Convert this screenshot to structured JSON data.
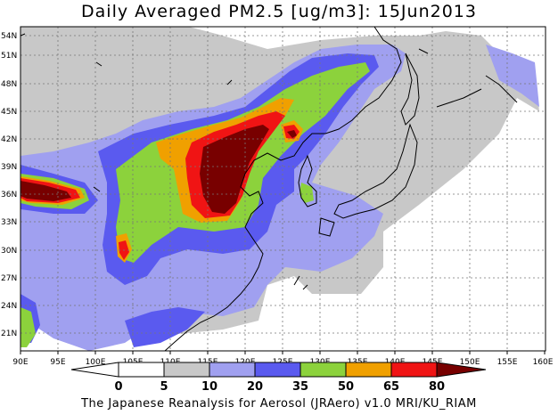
{
  "title": "Daily Averaged PM2.5 [ug/m3]: 15Jun2013",
  "credit": "The Japanese Reanalysis for Aerosol (JRAero) v1.0 MRI/KU_RIAM",
  "map": {
    "lon_range": [
      90,
      160
    ],
    "lat_range": [
      20,
      55
    ],
    "lon_ticks": [
      "90E",
      "95E",
      "100E",
      "105E",
      "110E",
      "115E",
      "120E",
      "125E",
      "130E",
      "135E",
      "140E",
      "145E",
      "150E",
      "155E",
      "160E"
    ],
    "lat_ticks": [
      "21N",
      "24N",
      "27N",
      "30N",
      "33N",
      "36N",
      "39N",
      "42N",
      "45N",
      "48N",
      "51N",
      "54N"
    ],
    "gridlines": true
  },
  "colorbar": {
    "levels": [
      "0",
      "5",
      "10",
      "20",
      "35",
      "50",
      "65",
      "80"
    ],
    "colors": [
      "#ffffff",
      "#c8c8c8",
      "#a0a0f0",
      "#5a5aef",
      "#8cd23c",
      "#f0a000",
      "#f01414",
      "#780000"
    ]
  },
  "colors": {
    "background": "#ffffff",
    "coastline": "#000000",
    "grid": "#777777"
  }
}
